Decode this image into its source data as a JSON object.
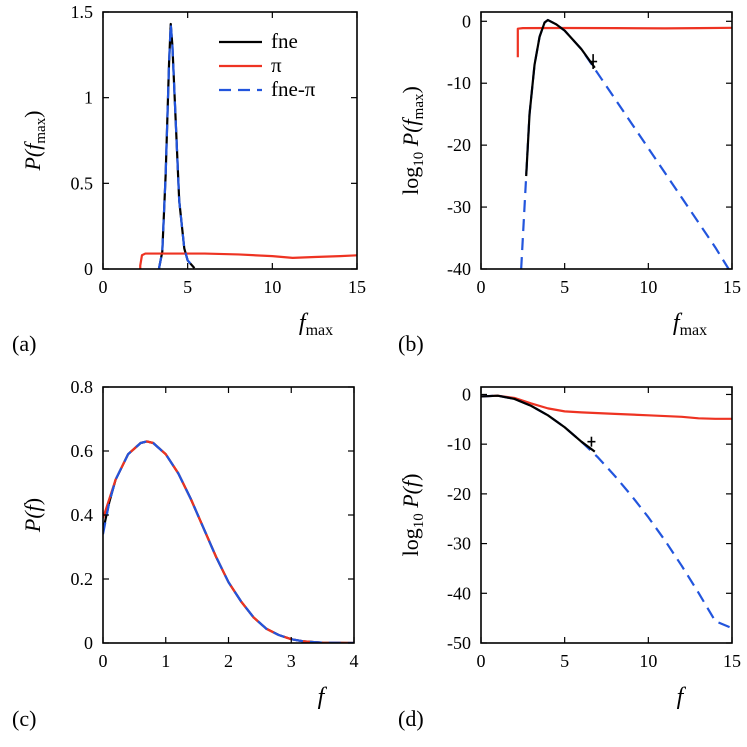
{
  "figure": {
    "legend": [
      {
        "name": "fne",
        "color": "#000000",
        "dash": "solid"
      },
      {
        "name": "π",
        "color": "#ee3322",
        "dash": "solid"
      },
      {
        "name": "fne-π",
        "color": "#2255dd",
        "dash": "dash"
      }
    ]
  },
  "chart_data": [
    {
      "id": "a",
      "type": "line",
      "panel_label": "(a)",
      "ylabel_parts": {
        "a": "P(",
        "b": "f",
        "sub": "max",
        "c": ")"
      },
      "xlabel": {
        "main": "f",
        "sub": "max"
      },
      "xlim": [
        0,
        15
      ],
      "ylim": [
        0,
        1.5
      ],
      "xticks": [
        0,
        5,
        10,
        15
      ],
      "yticks": [
        0,
        0.5,
        1,
        1.5
      ],
      "yticklabels": [
        "0",
        "0.5",
        "1",
        "1.5"
      ],
      "series": [
        {
          "name": "fne",
          "color": "#000000",
          "dash": "solid",
          "points": [
            [
              3.3,
              0
            ],
            [
              3.5,
              0.1
            ],
            [
              3.7,
              0.55
            ],
            [
              3.9,
              1.2
            ],
            [
              4.0,
              1.43
            ],
            [
              4.1,
              1.3
            ],
            [
              4.3,
              0.85
            ],
            [
              4.5,
              0.4
            ],
            [
              4.8,
              0.12
            ],
            [
              5.0,
              0.05
            ],
            [
              5.4,
              0.005
            ]
          ]
        },
        {
          "name": "π",
          "color": "#ee3322",
          "dash": "solid",
          "points": [
            [
              2.2,
              0
            ],
            [
              2.2,
              0.02
            ],
            [
              2.3,
              0.08
            ],
            [
              2.5,
              0.09
            ],
            [
              4,
              0.09
            ],
            [
              6,
              0.09
            ],
            [
              8,
              0.085
            ],
            [
              10,
              0.075
            ],
            [
              11.2,
              0.065
            ],
            [
              12.5,
              0.07
            ],
            [
              14,
              0.075
            ],
            [
              15,
              0.08
            ]
          ]
        },
        {
          "name": "fne-π",
          "color": "#2255dd",
          "dash": "dash",
          "points": [
            [
              3.3,
              0
            ],
            [
              3.5,
              0.1
            ],
            [
              3.7,
              0.55
            ],
            [
              3.9,
              1.2
            ],
            [
              4.0,
              1.43
            ],
            [
              4.1,
              1.3
            ],
            [
              4.3,
              0.85
            ],
            [
              4.5,
              0.4
            ],
            [
              4.8,
              0.12
            ],
            [
              5.0,
              0.05
            ],
            [
              5.4,
              0.005
            ]
          ]
        }
      ]
    },
    {
      "id": "b",
      "type": "line",
      "panel_label": "(b)",
      "ylabel_parts": {
        "a": "log",
        "sub": "10",
        "b": " P(",
        "c": "f",
        "sub2": "max",
        "d": ")"
      },
      "xlabel": {
        "main": "f",
        "sub": "max"
      },
      "xlim": [
        0,
        15
      ],
      "ylim": [
        -40,
        1.5
      ],
      "xticks": [
        0,
        5,
        10,
        15
      ],
      "yticks": [
        0,
        -10,
        -20,
        -30,
        -40
      ],
      "yticklabels": [
        "0",
        "-10",
        "-20",
        "-30",
        "-40"
      ],
      "series": [
        {
          "name": "π",
          "color": "#ee3322",
          "dash": "solid",
          "points": [
            [
              2.2,
              -5.8
            ],
            [
              2.2,
              -1.2
            ],
            [
              2.5,
              -1.1
            ],
            [
              5,
              -1.08
            ],
            [
              8,
              -1.1
            ],
            [
              11,
              -1.15
            ],
            [
              13,
              -1.1
            ],
            [
              15,
              -1.05
            ]
          ]
        },
        {
          "name": "fne-π",
          "color": "#2255dd",
          "dash": "dash",
          "points": [
            [
              2.4,
              -40
            ],
            [
              2.5,
              -35
            ],
            [
              2.7,
              -25
            ],
            [
              2.9,
              -15
            ],
            [
              3.2,
              -7
            ],
            [
              3.5,
              -2.5
            ],
            [
              3.8,
              -0.2
            ],
            [
              4.0,
              0.2
            ],
            [
              4.5,
              -0.5
            ],
            [
              5,
              -1.5
            ],
            [
              6,
              -4.5
            ],
            [
              7,
              -8.5
            ],
            [
              8,
              -12.5
            ],
            [
              9,
              -16.5
            ],
            [
              10,
              -20.5
            ],
            [
              11,
              -24.5
            ],
            [
              12,
              -28.5
            ],
            [
              13,
              -32.5
            ],
            [
              14,
              -36.5
            ],
            [
              14.8,
              -40
            ]
          ]
        },
        {
          "name": "fne",
          "color": "#000000",
          "dash": "solid",
          "points": [
            [
              2.7,
              -25
            ],
            [
              2.9,
              -15
            ],
            [
              3.2,
              -7
            ],
            [
              3.5,
              -2.5
            ],
            [
              3.8,
              -0.2
            ],
            [
              4.0,
              0.2
            ],
            [
              4.5,
              -0.5
            ],
            [
              5,
              -1.5
            ],
            [
              6,
              -4.5
            ],
            [
              6.8,
              -7.5
            ]
          ]
        }
      ],
      "error_bar": {
        "x": 6.7,
        "y": -6.5,
        "err": 1.2
      }
    },
    {
      "id": "c",
      "type": "line",
      "panel_label": "(c)",
      "ylabel_parts": {
        "a": "P(",
        "b": "f",
        "c": ")"
      },
      "xlabel": {
        "main": "f",
        "sub": ""
      },
      "xlim": [
        0,
        4
      ],
      "ylim": [
        0,
        0.8
      ],
      "xticks": [
        0,
        1,
        2,
        3,
        4
      ],
      "yticks": [
        0,
        0.2,
        0.4,
        0.6,
        0.8
      ],
      "yticklabels": [
        "0",
        "0.2",
        "0.4",
        "0.6",
        "0.8"
      ],
      "series": [
        {
          "name": "fne",
          "color": "#000000",
          "dash": "solid",
          "points": [
            [
              0,
              0.35
            ],
            [
              0.1,
              0.44
            ],
            [
              0.2,
              0.51
            ],
            [
              0.4,
              0.59
            ],
            [
              0.6,
              0.625
            ],
            [
              0.7,
              0.63
            ],
            [
              0.8,
              0.625
            ],
            [
              1.0,
              0.59
            ],
            [
              1.2,
              0.53
            ],
            [
              1.4,
              0.45
            ],
            [
              1.6,
              0.36
            ],
            [
              1.8,
              0.27
            ],
            [
              2.0,
              0.19
            ],
            [
              2.2,
              0.13
            ],
            [
              2.4,
              0.08
            ],
            [
              2.6,
              0.045
            ],
            [
              2.8,
              0.025
            ],
            [
              3.0,
              0.012
            ],
            [
              3.2,
              0.005
            ],
            [
              3.5,
              0.001
            ],
            [
              4,
              0
            ]
          ]
        },
        {
          "name": "π",
          "color": "#ee3322",
          "dash": "solid",
          "points": [
            [
              0,
              0.39
            ],
            [
              0.1,
              0.45
            ],
            [
              0.2,
              0.51
            ],
            [
              0.4,
              0.59
            ],
            [
              0.6,
              0.625
            ],
            [
              0.7,
              0.63
            ],
            [
              0.8,
              0.625
            ],
            [
              1.0,
              0.59
            ],
            [
              1.2,
              0.53
            ],
            [
              1.4,
              0.45
            ],
            [
              1.6,
              0.36
            ],
            [
              1.8,
              0.27
            ],
            [
              2.0,
              0.19
            ],
            [
              2.2,
              0.13
            ],
            [
              2.4,
              0.08
            ],
            [
              2.6,
              0.045
            ],
            [
              2.8,
              0.025
            ],
            [
              3.0,
              0.012
            ],
            [
              3.2,
              0.005
            ],
            [
              3.5,
              0.001
            ],
            [
              4,
              0
            ]
          ]
        },
        {
          "name": "fne-π",
          "color": "#2255dd",
          "dash": "dash",
          "points": [
            [
              0,
              0.34
            ],
            [
              0.1,
              0.44
            ],
            [
              0.2,
              0.51
            ],
            [
              0.4,
              0.59
            ],
            [
              0.6,
              0.625
            ],
            [
              0.7,
              0.63
            ],
            [
              0.8,
              0.625
            ],
            [
              1.0,
              0.59
            ],
            [
              1.2,
              0.53
            ],
            [
              1.4,
              0.45
            ],
            [
              1.6,
              0.36
            ],
            [
              1.8,
              0.27
            ],
            [
              2.0,
              0.19
            ],
            [
              2.2,
              0.13
            ],
            [
              2.4,
              0.08
            ],
            [
              2.6,
              0.045
            ],
            [
              2.8,
              0.025
            ],
            [
              3.0,
              0.012
            ],
            [
              3.2,
              0.005
            ],
            [
              3.5,
              0.001
            ],
            [
              4,
              0
            ]
          ]
        }
      ]
    },
    {
      "id": "d",
      "type": "line",
      "panel_label": "(d)",
      "ylabel_parts": {
        "a": "log",
        "sub": "10",
        "b": " P(",
        "c": "f",
        "d": ")"
      },
      "xlabel": {
        "main": "f",
        "sub": ""
      },
      "xlim": [
        0,
        15
      ],
      "ylim": [
        -50,
        1.5
      ],
      "xticks": [
        0,
        5,
        10,
        15
      ],
      "yticks": [
        0,
        -10,
        -20,
        -30,
        -40,
        -50
      ],
      "yticklabels": [
        "0",
        "-10",
        "-20",
        "-30",
        "-40",
        "-50"
      ],
      "series": [
        {
          "name": "π",
          "color": "#ee3322",
          "dash": "solid",
          "points": [
            [
              0,
              -0.4
            ],
            [
              1,
              -0.25
            ],
            [
              2,
              -0.7
            ],
            [
              3,
              -1.8
            ],
            [
              4,
              -2.8
            ],
            [
              5,
              -3.4
            ],
            [
              6,
              -3.6
            ],
            [
              8,
              -3.9
            ],
            [
              10,
              -4.2
            ],
            [
              12,
              -4.5
            ],
            [
              13,
              -4.8
            ],
            [
              14,
              -4.9
            ],
            [
              15,
              -4.9
            ]
          ]
        },
        {
          "name": "fne-π",
          "color": "#2255dd",
          "dash": "dash",
          "points": [
            [
              0,
              -0.4
            ],
            [
              1,
              -0.25
            ],
            [
              2,
              -0.9
            ],
            [
              3,
              -2.3
            ],
            [
              4,
              -4.2
            ],
            [
              5,
              -6.6
            ],
            [
              6,
              -9.5
            ],
            [
              7,
              -12.7
            ],
            [
              8,
              -16.4
            ],
            [
              9,
              -20.4
            ],
            [
              10,
              -24.7
            ],
            [
              11,
              -29.4
            ],
            [
              12,
              -34.5
            ],
            [
              13,
              -39.9
            ],
            [
              14,
              -45.6
            ],
            [
              15,
              -47
            ]
          ]
        },
        {
          "name": "fne",
          "color": "#000000",
          "dash": "solid",
          "points": [
            [
              0,
              -0.4
            ],
            [
              1,
              -0.25
            ],
            [
              2,
              -0.9
            ],
            [
              3,
              -2.3
            ],
            [
              4,
              -4.2
            ],
            [
              5,
              -6.6
            ],
            [
              6,
              -9.5
            ],
            [
              6.8,
              -11.5
            ]
          ]
        }
      ],
      "error_bar": {
        "x": 6.6,
        "y": -9.5,
        "err": 1.0
      }
    }
  ]
}
